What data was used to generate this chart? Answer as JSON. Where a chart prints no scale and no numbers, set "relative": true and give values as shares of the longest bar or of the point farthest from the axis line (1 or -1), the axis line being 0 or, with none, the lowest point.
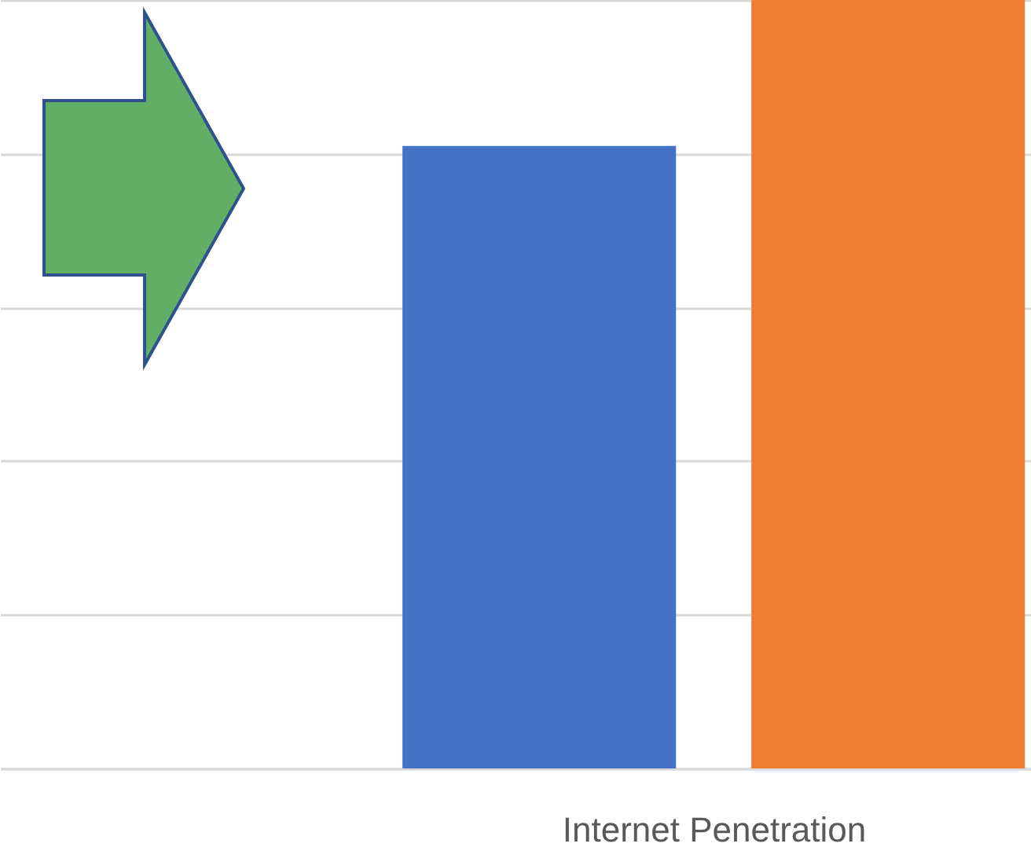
{
  "chart_data": {
    "type": "bar",
    "xlabel": "Internet Penetration",
    "categories": [
      null,
      null
    ],
    "relative": true,
    "grid": "y",
    "values": [
      0.81,
      1
    ],
    "colors": [
      "#4472c4",
      "#ed7d31"
    ]
  }
}
